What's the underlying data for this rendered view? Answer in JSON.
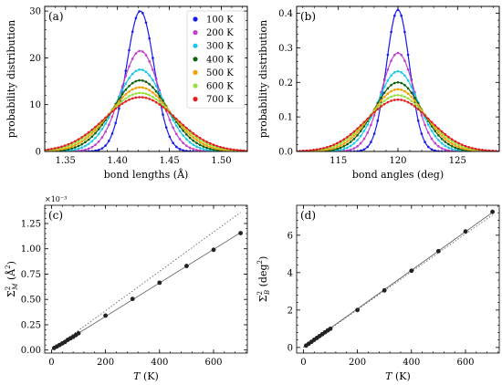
{
  "legend": [
    "100 K",
    "200 K",
    "300 K",
    "400 K",
    "500 K",
    "600 K",
    "700 K"
  ],
  "colors": [
    "#1a1aee",
    "#c040c8",
    "#1ac8e8",
    "#106010",
    "#f0a000",
    "#98e040",
    "#e02020"
  ],
  "chart_data": [
    {
      "type": "line",
      "panel_label": "(a)",
      "xlabel": "bond lengths (Å)",
      "ylabel": "probability distribution",
      "xlim": [
        1.33,
        1.525
      ],
      "ylim": [
        0,
        31
      ],
      "xticks": [
        "1.35",
        "1.40",
        "1.45",
        "1.50"
      ],
      "xtick_values": [
        1.35,
        1.4,
        1.45,
        1.5
      ],
      "yticks": [
        "0",
        "10",
        "20",
        "30"
      ],
      "ytick_values": [
        0,
        10,
        20,
        30
      ],
      "center": 1.422,
      "series": [
        {
          "name": "100 K",
          "peak": 30.0
        },
        {
          "name": "200 K",
          "peak": 21.5
        },
        {
          "name": "300 K",
          "peak": 17.5
        },
        {
          "name": "400 K",
          "peak": 15.2
        },
        {
          "name": "500 K",
          "peak": 13.7
        },
        {
          "name": "600 K",
          "peak": 12.5
        },
        {
          "name": "700 K",
          "peak": 11.6
        }
      ]
    },
    {
      "type": "line",
      "panel_label": "(b)",
      "xlabel": "bond angles (deg)",
      "ylabel": "probability distribution",
      "xlim": [
        111.5,
        128.5
      ],
      "ylim": [
        0,
        0.42
      ],
      "xticks": [
        "115",
        "120",
        "125"
      ],
      "xtick_values": [
        115,
        120,
        125
      ],
      "yticks": [
        "0.0",
        "0.1",
        "0.2",
        "0.3",
        "0.4"
      ],
      "ytick_values": [
        0,
        0.1,
        0.2,
        0.3,
        0.4
      ],
      "center": 120.0,
      "series": [
        {
          "name": "100 K",
          "peak": 0.41
        },
        {
          "name": "200 K",
          "peak": 0.285
        },
        {
          "name": "300 K",
          "peak": 0.232
        },
        {
          "name": "400 K",
          "peak": 0.2
        },
        {
          "name": "500 K",
          "peak": 0.18
        },
        {
          "name": "600 K",
          "peak": 0.163
        },
        {
          "name": "700 K",
          "peak": 0.15
        }
      ]
    },
    {
      "type": "scatter",
      "panel_label": "(c)",
      "xlabel": "T (K)",
      "ylabel": "Σ²_M (Å²)",
      "sci_label": "×10⁻³",
      "xlim": [
        -25,
        725
      ],
      "ylim": [
        -0.03,
        1.43
      ],
      "xticks": [
        "0",
        "200",
        "400",
        "600"
      ],
      "xtick_values": [
        0,
        200,
        400,
        600
      ],
      "yticks": [
        "0.00",
        "0.25",
        "0.50",
        "0.75",
        "1.00",
        "1.25"
      ],
      "ytick_values": [
        0,
        0.25,
        0.5,
        0.75,
        1.0,
        1.25
      ],
      "x": [
        10,
        20,
        30,
        40,
        50,
        60,
        70,
        80,
        90,
        100,
        200,
        300,
        400,
        500,
        600,
        700
      ],
      "y": [
        0.02,
        0.035,
        0.05,
        0.065,
        0.08,
        0.1,
        0.115,
        0.13,
        0.148,
        0.165,
        0.34,
        0.505,
        0.665,
        0.83,
        0.99,
        1.155
      ],
      "fit_line": {
        "x": [
          0,
          700
        ],
        "y": [
          0.0,
          1.16
        ]
      },
      "dotted_line": {
        "x": [
          0,
          700
        ],
        "y": [
          0.0,
          1.36
        ]
      }
    },
    {
      "type": "scatter",
      "panel_label": "(d)",
      "xlabel": "T (K)",
      "ylabel": "Σ²_B (deg²)",
      "xlim": [
        -25,
        725
      ],
      "ylim": [
        -0.3,
        7.6
      ],
      "xticks": [
        "0",
        "200",
        "400",
        "600"
      ],
      "xtick_values": [
        0,
        200,
        400,
        600
      ],
      "yticks": [
        "0",
        "2",
        "4",
        "6"
      ],
      "ytick_values": [
        0,
        2,
        4,
        6
      ],
      "x": [
        10,
        20,
        30,
        40,
        50,
        60,
        70,
        80,
        90,
        100,
        200,
        300,
        400,
        500,
        600,
        700
      ],
      "y": [
        0.1,
        0.2,
        0.3,
        0.41,
        0.51,
        0.61,
        0.71,
        0.81,
        0.91,
        1.0,
        2.0,
        3.05,
        4.1,
        5.15,
        6.2,
        7.25
      ],
      "fit_line": {
        "x": [
          0,
          700
        ],
        "y": [
          0.0,
          7.22
        ]
      },
      "dotted_line": {
        "x": [
          0,
          700
        ],
        "y": [
          0.0,
          7.08
        ]
      }
    }
  ]
}
